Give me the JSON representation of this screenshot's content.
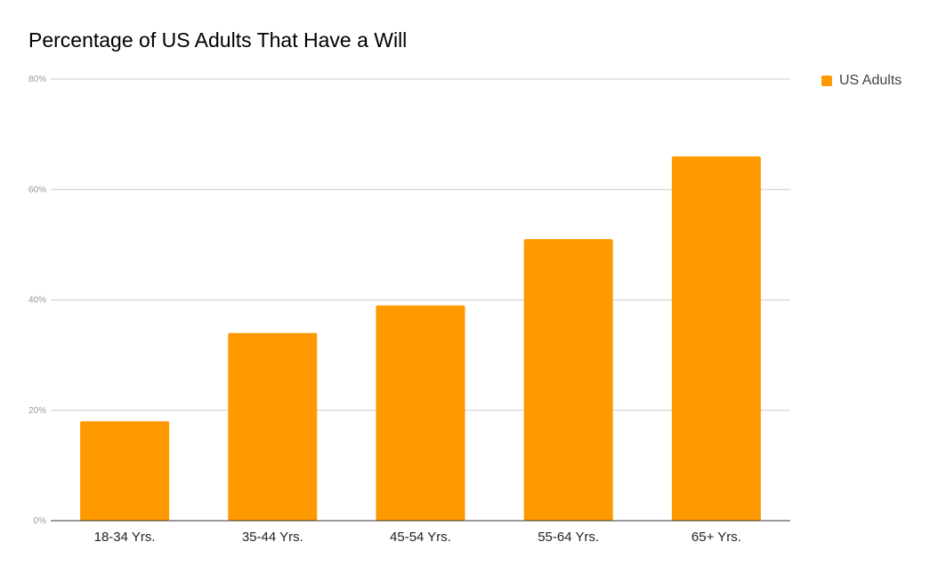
{
  "chart_data": {
    "type": "bar",
    "title": "Percentage of US Adults That Have a Will",
    "xlabel": "",
    "ylabel": "",
    "categories": [
      "18-34 Yrs.",
      "35-44 Yrs.",
      "45-54 Yrs.",
      "55-64 Yrs.",
      "65+ Yrs."
    ],
    "series": [
      {
        "name": "US Adults",
        "values": [
          18,
          34,
          39,
          51,
          66
        ]
      }
    ],
    "ylim": [
      0,
      80
    ],
    "yticks": [
      0,
      20,
      40,
      60,
      80
    ],
    "ytick_labels": [
      "0%",
      "20%",
      "40%",
      "60%",
      "80%"
    ],
    "grid": true,
    "legend_position": "top-right",
    "colors": {
      "bar": "#ff9900",
      "grid": "#cccccc",
      "axis": "#333333"
    }
  }
}
